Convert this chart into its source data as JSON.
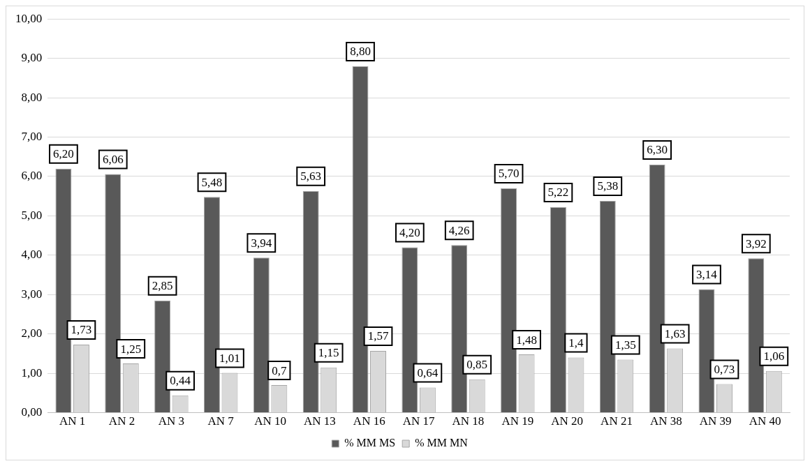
{
  "chart_data": {
    "type": "bar",
    "categories": [
      "AN 1",
      "AN 2",
      "AN 3",
      "AN 7",
      "AN 10",
      "AN 13",
      "AN 16",
      "AN 17",
      "AN 18",
      "AN 19",
      "AN 20",
      "AN 21",
      "AN 38",
      "AN 39",
      "AN 40"
    ],
    "series": [
      {
        "name": "% MM MS",
        "color": "#595959",
        "values": [
          6.2,
          6.06,
          2.85,
          5.48,
          3.94,
          5.63,
          8.8,
          4.2,
          4.26,
          5.7,
          5.22,
          5.38,
          6.3,
          3.14,
          3.92
        ],
        "value_labels": [
          "6,20",
          "6,06",
          "2,85",
          "5,48",
          "3,94",
          "5,63",
          "8,80",
          "4,20",
          "4,26",
          "5,70",
          "5,22",
          "5,38",
          "6,30",
          "3,14",
          "3,92"
        ]
      },
      {
        "name": "% MM MN",
        "color": "#d9d9d9",
        "values": [
          1.73,
          1.25,
          0.44,
          1.01,
          0.7,
          1.15,
          1.57,
          0.64,
          0.85,
          1.48,
          1.4,
          1.35,
          1.63,
          0.73,
          1.06
        ],
        "value_labels": [
          "1,73",
          "1,25",
          "0,44",
          "1,01",
          "0,7",
          "1,15",
          "1,57",
          "0,64",
          "0,85",
          "1,48",
          "1,4",
          "1,35",
          "1,63",
          "0,73",
          "1,06"
        ]
      }
    ],
    "ylim": [
      0,
      10
    ],
    "yticks": [
      {
        "value": 0,
        "label": "0,00"
      },
      {
        "value": 1,
        "label": "1,00"
      },
      {
        "value": 2,
        "label": "2,00"
      },
      {
        "value": 3,
        "label": "3,00"
      },
      {
        "value": 4,
        "label": "4,00"
      },
      {
        "value": 5,
        "label": "5,00"
      },
      {
        "value": 6,
        "label": "6,00"
      },
      {
        "value": 7,
        "label": "7,00"
      },
      {
        "value": 8,
        "label": "8,00"
      },
      {
        "value": 9,
        "label": "9,00"
      },
      {
        "value": 10,
        "label": "10,00"
      }
    ],
    "grid": "y",
    "legend": "bottom"
  }
}
